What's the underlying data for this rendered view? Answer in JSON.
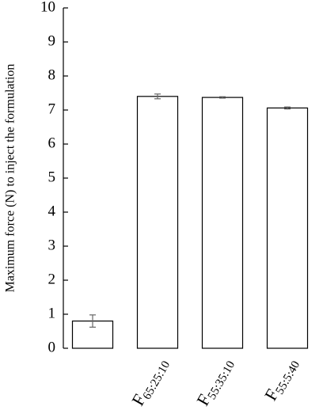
{
  "chart_data": {
    "type": "bar",
    "y_label": "Maximum force (N) to inject the formulation",
    "categories": [
      null,
      "F65:25:10",
      "F55:35:10",
      "F55:5:40"
    ],
    "values": [
      0.8,
      7.4,
      7.37,
      7.06
    ],
    "errors": [
      0.18,
      0.07,
      0.02,
      0.03
    ],
    "color": "#ffffff",
    "ylim": [
      0,
      10
    ],
    "yticks": [
      0,
      1,
      2,
      3,
      4,
      5,
      6,
      7,
      8,
      9,
      10
    ],
    "grid": false
  }
}
